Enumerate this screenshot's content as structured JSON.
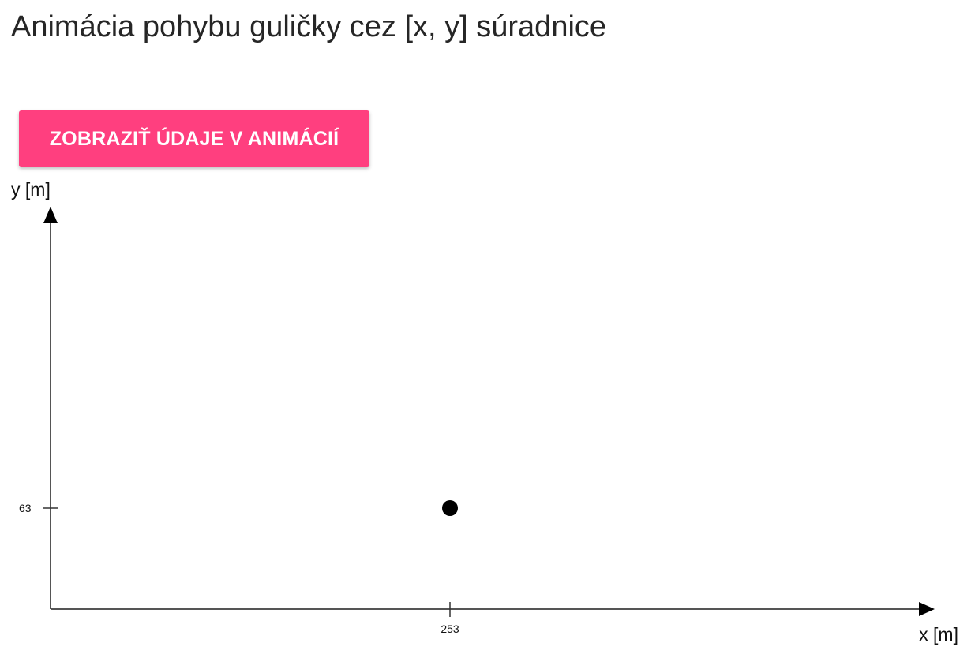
{
  "page": {
    "title": "Animácia pohybu guličky cez [x, y] súradnice"
  },
  "toolbar": {
    "show_button_label": "ZOBRAZIŤ ÚDAJE V ANIMÁCIÍ",
    "show_button_color": "#ff3f7f"
  },
  "plot": {
    "x_axis_label": "x [m]",
    "y_axis_label": "y [m]",
    "ball": {
      "x": 253,
      "y": 63
    },
    "x_tick_label": "253",
    "y_tick_label": "63"
  }
}
